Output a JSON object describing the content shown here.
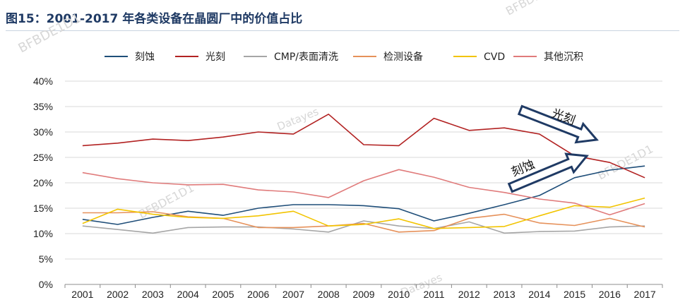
{
  "figure": {
    "title": "图15：2001-2017 年各类设备在晶圆厂中的价值占比",
    "watermarks": [
      "BFBDE1D1",
      "BFBDE1D1",
      "BFBDE1D1",
      "BFBDE1D1",
      "Datayes",
      "Datayes"
    ]
  },
  "chart_data": {
    "type": "line",
    "categories": [
      "2001",
      "2002",
      "2003",
      "2004",
      "2005",
      "2006",
      "2007",
      "2008",
      "2009",
      "2010",
      "2011",
      "2012",
      "2013",
      "2014",
      "2015",
      "2016",
      "2017"
    ],
    "ylim": [
      0,
      40
    ],
    "yticks": [
      0,
      5,
      10,
      15,
      20,
      25,
      30,
      35,
      40
    ],
    "ytick_labels": [
      "0%",
      "5%",
      "10%",
      "15%",
      "20%",
      "25%",
      "30%",
      "35%",
      "40%"
    ],
    "grid": true,
    "legend_position": "top",
    "series": [
      {
        "name": "刻蚀",
        "color": "#1f4e79",
        "values": [
          12.8,
          11.8,
          13.2,
          14.4,
          13.6,
          15.0,
          15.7,
          15.7,
          15.5,
          14.9,
          12.5,
          14.0,
          15.7,
          17.5,
          21.0,
          22.5,
          23.3
        ]
      },
      {
        "name": "光刻",
        "color": "#b22222",
        "values": [
          27.3,
          27.8,
          28.6,
          28.3,
          29.0,
          30.0,
          29.6,
          33.5,
          27.5,
          27.3,
          32.7,
          30.3,
          30.8,
          29.6,
          25.3,
          24.0,
          21.0
        ]
      },
      {
        "name": "CMP/表面清洗",
        "color": "#a6a6a6",
        "values": [
          11.5,
          10.8,
          10.1,
          11.2,
          11.3,
          11.3,
          10.9,
          10.3,
          12.5,
          11.5,
          11.0,
          12.3,
          10.1,
          10.4,
          10.5,
          11.3,
          11.5
        ]
      },
      {
        "name": "检测设备",
        "color": "#e6915a",
        "values": [
          14.1,
          14.1,
          14.3,
          13.3,
          13.0,
          11.2,
          11.2,
          11.5,
          12.0,
          10.3,
          10.6,
          13.0,
          13.8,
          12.1,
          11.6,
          13.0,
          11.3
        ]
      },
      {
        "name": "CVD",
        "color": "#f2c400",
        "values": [
          12.0,
          14.8,
          13.8,
          13.2,
          13.0,
          13.5,
          14.4,
          11.5,
          11.8,
          12.9,
          11.0,
          11.2,
          11.4,
          13.5,
          15.5,
          15.2,
          17.0
        ]
      },
      {
        "name": "其他沉积",
        "color": "#e07b7b",
        "values": [
          22.0,
          20.8,
          20.0,
          19.6,
          19.7,
          18.6,
          18.2,
          17.1,
          20.4,
          22.6,
          21.1,
          19.1,
          18.1,
          16.8,
          16.0,
          13.7,
          15.9
        ]
      }
    ],
    "annotations": [
      {
        "text": "光刻",
        "arrow": "down-right"
      },
      {
        "text": "刻蚀",
        "arrow": "up-right"
      }
    ]
  }
}
